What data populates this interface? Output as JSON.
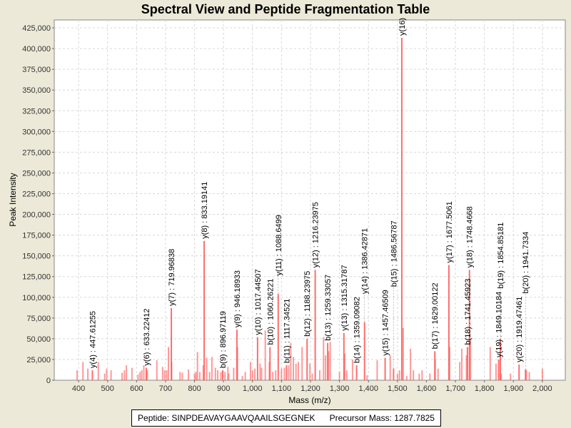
{
  "chart_data": {
    "type": "bar",
    "title": "Spectral View and Peptide Fragmentation Table",
    "xlabel": "Mass (m/z)",
    "ylabel": "Peak Intensity",
    "xlim": [
      316,
      2079
    ],
    "ylim": [
      0,
      434500
    ],
    "grid": true,
    "x_ticks": [
      400,
      500,
      600,
      700,
      800,
      900,
      1000,
      1100,
      1200,
      1300,
      1400,
      1500,
      1600,
      1700,
      1800,
      1900,
      2000
    ],
    "x_tick_labels": [
      "400",
      "500",
      "600",
      "700",
      "800",
      "900",
      "1,000",
      "1,100",
      "1,200",
      "1,300",
      "1,400",
      "1,500",
      "1,600",
      "1,700",
      "1,800",
      "1,900",
      "2,000"
    ],
    "y_ticks": [
      0,
      25000,
      50000,
      75000,
      100000,
      125000,
      150000,
      175000,
      200000,
      225000,
      250000,
      275000,
      300000,
      325000,
      350000,
      375000,
      400000,
      425000
    ],
    "y_tick_labels": [
      "0",
      "25,000",
      "50,000",
      "75,000",
      "100,000",
      "125,000",
      "150,000",
      "175,000",
      "200,000",
      "225,000",
      "250,000",
      "275,000",
      "300,000",
      "325,000",
      "350,000",
      "375,000",
      "400,000",
      "425,000"
    ],
    "bar_color": "#ff5555",
    "annotated_peaks": [
      {
        "mz": 447.61255,
        "intensity": 12000,
        "label": "y(4) : 447.61255"
      },
      {
        "mz": 633.22412,
        "intensity": 15000,
        "label": "y(6) : 633.22412"
      },
      {
        "mz": 719.96838,
        "intensity": 87000,
        "label": "y(7) : 719.96838"
      },
      {
        "mz": 833.19141,
        "intensity": 168000,
        "label": "y(8) : 833.19141"
      },
      {
        "mz": 896.97119,
        "intensity": 12000,
        "label": "b(9) : 896.97119"
      },
      {
        "mz": 946.18933,
        "intensity": 61000,
        "label": "y(9) : 946.18933"
      },
      {
        "mz": 1017.44507,
        "intensity": 52000,
        "label": "y(10) : 1017.44507"
      },
      {
        "mz": 1060.26221,
        "intensity": 40000,
        "label": "b(10) : 1060.26221"
      },
      {
        "mz": 1088.6499,
        "intensity": 104000,
        "label": "y(11) : 1088.6499"
      },
      {
        "mz": 1117.34521,
        "intensity": 18000,
        "label": "b(11) : 1117.34521"
      },
      {
        "mz": 1188.23975,
        "intensity": 50000,
        "label": "b(12) : 1188.23975"
      },
      {
        "mz": 1216.23975,
        "intensity": 133000,
        "label": "y(12) : 1216.23975"
      },
      {
        "mz": 1259.33057,
        "intensity": 45000,
        "label": "b(13) : 1259.33057"
      },
      {
        "mz": 1315.31787,
        "intensity": 57000,
        "label": "y(13) : 1315.31787"
      },
      {
        "mz": 1359.09082,
        "intensity": 18000,
        "label": "b(14) : 1359.09082"
      },
      {
        "mz": 1386.42871,
        "intensity": 70000,
        "label": "y(14) : 1386.42871"
      },
      {
        "mz": 1457.46509,
        "intensity": 27000,
        "label": "y(15) : 1457.46509"
      },
      {
        "mz": 1486.56787,
        "intensity": 14000,
        "label": "b(15) : 1486.56787"
      },
      {
        "mz": 1515.0,
        "intensity": 413000,
        "label": "y(16)"
      },
      {
        "mz": 1629.00122,
        "intensity": 35000,
        "label": "b(17) : 1629.00122"
      },
      {
        "mz": 1677.5061,
        "intensity": 139000,
        "label": "y(17) : 1677.5061"
      },
      {
        "mz": 1741.45923,
        "intensity": 40000,
        "label": "b(18) : 1741.45923"
      },
      {
        "mz": 1748.4668,
        "intensity": 133000,
        "label": "y(18) : 1748.4668"
      },
      {
        "mz": 1849.10184,
        "intensity": 25000,
        "label": "y(19) : 1849.10184"
      },
      {
        "mz": 1854.85181,
        "intensity": 50000,
        "label": "b(19) : 1854.85181"
      },
      {
        "mz": 1919.47461,
        "intensity": 19000,
        "label": "y(20) : 1919.47461"
      },
      {
        "mz": 1941.7334,
        "intensity": 13000,
        "label": "b(20) : 1941.7334"
      }
    ],
    "peaks": [
      [
        395,
        12000
      ],
      [
        415,
        22000
      ],
      [
        432,
        14000
      ],
      [
        468,
        22000
      ],
      [
        490,
        8000
      ],
      [
        497,
        14000
      ],
      [
        512,
        12000
      ],
      [
        550,
        9000
      ],
      [
        558,
        12000
      ],
      [
        565,
        18000
      ],
      [
        584,
        15000
      ],
      [
        605,
        7000
      ],
      [
        612,
        10000
      ],
      [
        618,
        12000
      ],
      [
        625,
        18000
      ],
      [
        637,
        12000
      ],
      [
        670,
        24000
      ],
      [
        690,
        16000
      ],
      [
        697,
        12000
      ],
      [
        704,
        12000
      ],
      [
        710,
        40000
      ],
      [
        721,
        22000
      ],
      [
        750,
        10000
      ],
      [
        758,
        9000
      ],
      [
        779,
        13000
      ],
      [
        800,
        8000
      ],
      [
        805,
        10000
      ],
      [
        810,
        34000
      ],
      [
        818,
        10000
      ],
      [
        830,
        18000
      ],
      [
        842,
        27000
      ],
      [
        852,
        10000
      ],
      [
        860,
        28000
      ],
      [
        872,
        15000
      ],
      [
        880,
        12000
      ],
      [
        891,
        10000
      ],
      [
        905,
        10000
      ],
      [
        915,
        16000
      ],
      [
        918,
        8000
      ],
      [
        935,
        15000
      ],
      [
        948,
        40000
      ],
      [
        965,
        5000
      ],
      [
        975,
        10000
      ],
      [
        993,
        22000
      ],
      [
        1000,
        12000
      ],
      [
        1008,
        14000
      ],
      [
        1026,
        20000
      ],
      [
        1031,
        15000
      ],
      [
        1044,
        60000
      ],
      [
        1058,
        22000
      ],
      [
        1070,
        10000
      ],
      [
        1080,
        12000
      ],
      [
        1100,
        14000
      ],
      [
        1110,
        15000
      ],
      [
        1125,
        18000
      ],
      [
        1132,
        45000
      ],
      [
        1141,
        28000
      ],
      [
        1150,
        20000
      ],
      [
        1158,
        22000
      ],
      [
        1171,
        40000
      ],
      [
        1198,
        20000
      ],
      [
        1206,
        8000
      ],
      [
        1232,
        12000
      ],
      [
        1245,
        52000
      ],
      [
        1252,
        30000
      ],
      [
        1262,
        35000
      ],
      [
        1268,
        46000
      ],
      [
        1300,
        10000
      ],
      [
        1318,
        32000
      ],
      [
        1325,
        12000
      ],
      [
        1345,
        25000
      ],
      [
        1395,
        6000
      ],
      [
        1430,
        24000
      ],
      [
        1475,
        30000
      ],
      [
        1500,
        8000
      ],
      [
        1507,
        12000
      ],
      [
        1520,
        63000
      ],
      [
        1532,
        5000
      ],
      [
        1545,
        38000
      ],
      [
        1555,
        12000
      ],
      [
        1575,
        8000
      ],
      [
        1585,
        12000
      ],
      [
        1612,
        8000
      ],
      [
        1630,
        25000
      ],
      [
        1640,
        14000
      ],
      [
        1680,
        40000
      ],
      [
        1715,
        22000
      ],
      [
        1722,
        38000
      ],
      [
        1738,
        30000
      ],
      [
        1752,
        50000
      ],
      [
        1820,
        40000
      ],
      [
        1840,
        20000
      ],
      [
        1858,
        8000
      ],
      [
        1890,
        8000
      ],
      [
        1945,
        12000
      ],
      [
        1955,
        10000
      ],
      [
        2000,
        14000
      ]
    ]
  },
  "footer": {
    "text": "Peptide: SINPDEAVAYGAAVQAAILSGEGNEK      Precursor Mass: 1287.7825"
  }
}
